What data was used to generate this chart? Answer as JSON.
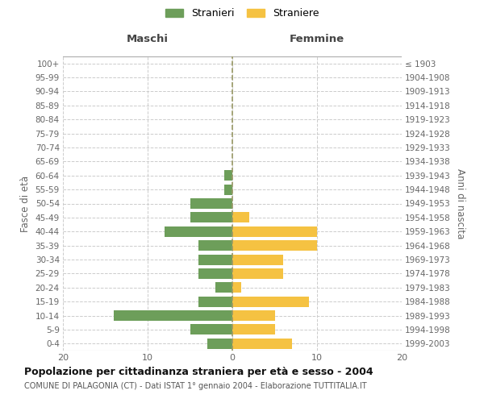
{
  "age_groups": [
    "0-4",
    "5-9",
    "10-14",
    "15-19",
    "20-24",
    "25-29",
    "30-34",
    "35-39",
    "40-44",
    "45-49",
    "50-54",
    "55-59",
    "60-64",
    "65-69",
    "70-74",
    "75-79",
    "80-84",
    "85-89",
    "90-94",
    "95-99",
    "100+"
  ],
  "birth_years": [
    "1999-2003",
    "1994-1998",
    "1989-1993",
    "1984-1988",
    "1979-1983",
    "1974-1978",
    "1969-1973",
    "1964-1968",
    "1959-1963",
    "1954-1958",
    "1949-1953",
    "1944-1948",
    "1939-1943",
    "1934-1938",
    "1929-1933",
    "1924-1928",
    "1919-1923",
    "1914-1918",
    "1909-1913",
    "1904-1908",
    "≤ 1903"
  ],
  "maschi": [
    3,
    5,
    14,
    4,
    2,
    4,
    4,
    4,
    8,
    5,
    5,
    1,
    1,
    0,
    0,
    0,
    0,
    0,
    0,
    0,
    0
  ],
  "femmine": [
    7,
    5,
    5,
    9,
    1,
    6,
    6,
    10,
    10,
    2,
    0,
    0,
    0,
    0,
    0,
    0,
    0,
    0,
    0,
    0,
    0
  ],
  "maschi_color": "#6d9e5a",
  "femmine_color": "#f5c242",
  "background_color": "#ffffff",
  "grid_color": "#cccccc",
  "xlim": 20,
  "title": "Popolazione per cittadinanza straniera per età e sesso - 2004",
  "subtitle": "COMUNE DI PALAGONIA (CT) - Dati ISTAT 1° gennaio 2004 - Elaborazione TUTTITALIA.IT",
  "ylabel_left": "Fasce di età",
  "ylabel_right": "Anni di nascita",
  "maschi_label": "Stranieri",
  "femmine_label": "Straniere",
  "maschi_header": "Maschi",
  "femmine_header": "Femmine"
}
